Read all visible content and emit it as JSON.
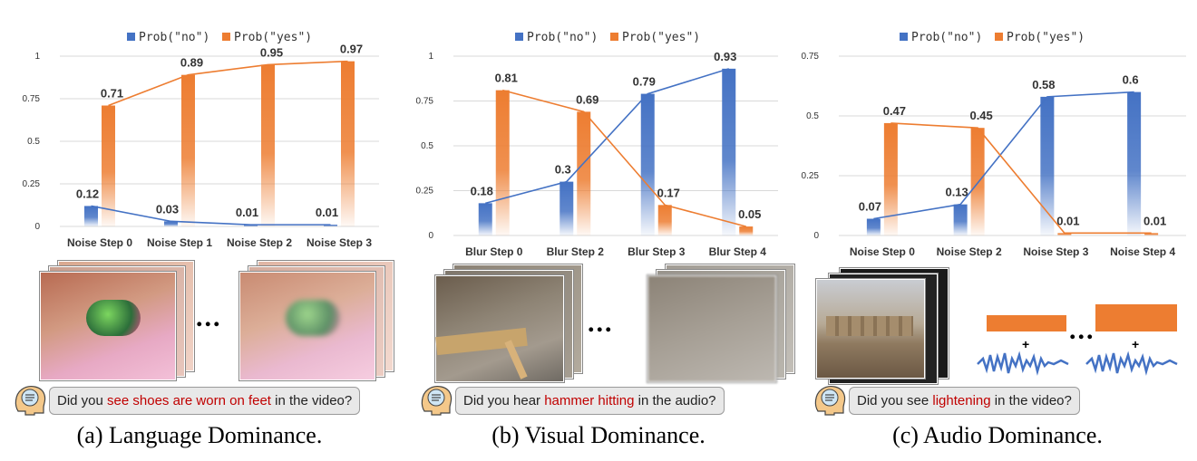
{
  "colors": {
    "no": "#4472c4",
    "yes": "#ed7d31",
    "grid": "#d9d9d9",
    "highlight": "#c00000"
  },
  "chart_data": [
    {
      "type": "bar",
      "categories": [
        "Noise Step 0",
        "Noise Step 1",
        "Noise Step 2",
        "Noise Step 3"
      ],
      "series": [
        {
          "name": "Prob(\"no\")",
          "values": [
            0.12,
            0.03,
            0.01,
            0.01
          ]
        },
        {
          "name": "Prob(\"yes\")",
          "values": [
            0.71,
            0.89,
            0.95,
            0.97
          ]
        }
      ],
      "ylim": [
        0,
        1
      ],
      "yticks": [
        "0",
        "0.25",
        "0.5",
        "0.75",
        "1"
      ],
      "ytick_values": [
        0,
        0.25,
        0.5,
        0.75,
        1
      ],
      "grid": true,
      "legend": "top",
      "overlay_lines": true
    },
    {
      "type": "bar",
      "categories": [
        "Blur Step 0",
        "Blur Step 2",
        "Blur Step 3",
        "Blur Step 4"
      ],
      "series": [
        {
          "name": "Prob(\"no\")",
          "values": [
            0.18,
            0.3,
            0.79,
            0.93
          ]
        },
        {
          "name": "Prob(\"yes\")",
          "values": [
            0.81,
            0.69,
            0.17,
            0.05
          ]
        }
      ],
      "ylim": [
        0,
        1
      ],
      "yticks": [
        "0",
        "0.25",
        "0.5",
        "0.75",
        "1"
      ],
      "ytick_values": [
        0,
        0.25,
        0.5,
        0.75,
        1
      ],
      "grid": true,
      "legend": "top",
      "overlay_lines": true
    },
    {
      "type": "bar",
      "categories": [
        "Noise Step 0",
        "Noise Step 2",
        "Noise Step 3",
        "Noise Step 4"
      ],
      "series": [
        {
          "name": "Prob(\"no\")",
          "values": [
            0.07,
            0.13,
            0.58,
            0.6
          ]
        },
        {
          "name": "Prob(\"yes\")",
          "values": [
            0.47,
            0.45,
            0.01,
            0.01
          ]
        }
      ],
      "ylim": [
        0,
        0.75
      ],
      "yticks": [
        "0",
        "0.25",
        "0.5",
        "0.75"
      ],
      "ytick_values": [
        0,
        0.25,
        0.5,
        0.75
      ],
      "grid": true,
      "legend": "top",
      "overlay_lines": true
    }
  ],
  "panels": [
    {
      "question": {
        "pre": "Did you ",
        "highlight": "see shoes are worn on feet",
        "post": " in the video?"
      },
      "caption": "(a) Language Dominance.",
      "ellipsis": "..."
    },
    {
      "question": {
        "pre": "Did you hear ",
        "highlight": "hammer hitting",
        "post": " in the audio?"
      },
      "caption": "(b) Visual Dominance.",
      "ellipsis": "..."
    },
    {
      "question": {
        "pre": "Did you see ",
        "highlight": "lightening",
        "post": " in the video?"
      },
      "caption": "(c) Audio Dominance.",
      "ellipsis": "...",
      "plus_sign": "+"
    }
  ]
}
